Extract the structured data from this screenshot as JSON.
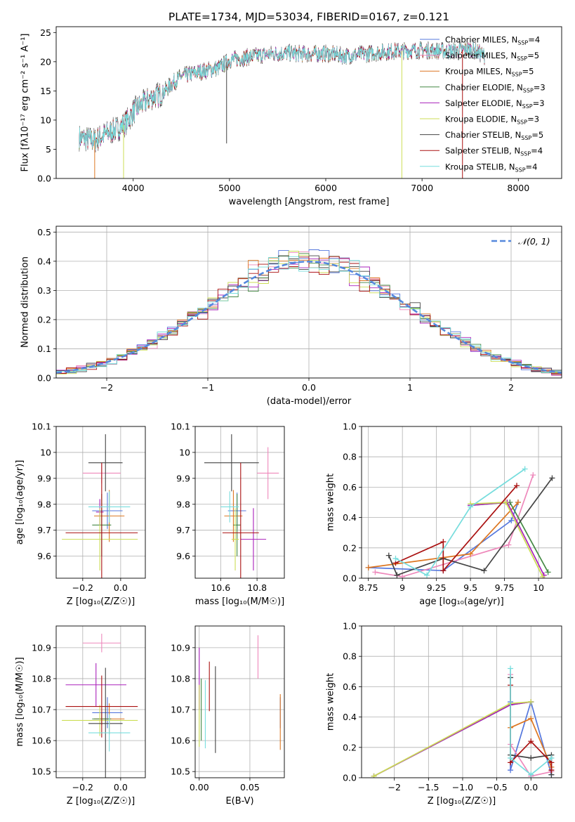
{
  "figure_title": "PLATE=1734, MJD=53034, FIBERID=0167, z=0.121",
  "colors": {
    "chabrier_miles": "#5577dd",
    "salpeter_miles": "#ee88bb",
    "kroupa_miles": "#dd7722",
    "chabrier_elodie": "#448844",
    "salpeter_elodie": "#aa22bb",
    "kroupa_elodie": "#ccdd55",
    "chabrier_stelib": "#444444",
    "salpeter_stelib": "#aa1111",
    "kroupa_stelib": "#77dddd",
    "normal_curve": "#5588dd",
    "grid": "#b0b0b0"
  },
  "legend_models": [
    {
      "name": "Chabrier MILES",
      "nssp": "4"
    },
    {
      "name": "Salpeter MILES",
      "nssp": "5"
    },
    {
      "name": "Kroupa MILES",
      "nssp": "5"
    },
    {
      "name": "Chabrier ELODIE",
      "nssp": "3"
    },
    {
      "name": "Salpeter ELODIE",
      "nssp": "3"
    },
    {
      "name": "Kroupa ELODIE",
      "nssp": "3"
    },
    {
      "name": "Chabrier STELIB",
      "nssp": "5"
    },
    {
      "name": "Salpeter STELIB",
      "nssp": "4"
    },
    {
      "name": "Kroupa STELIB",
      "nssp": "4"
    }
  ],
  "chart_data": [
    {
      "id": "spectrum",
      "type": "line",
      "xlabel": "wavelength [Angstrom, rest frame]",
      "ylabel": "Flux [fλ10⁻¹⁷ erg cm⁻² s⁻¹ A⁻¹]",
      "xlim": [
        3200,
        8450
      ],
      "ylim": [
        0,
        26
      ],
      "xticks": [
        4000,
        5000,
        6000,
        7000,
        8000
      ],
      "yticks": [
        0,
        5,
        10,
        15,
        20,
        25
      ],
      "grid": false,
      "legend": "top-right",
      "x_start": 3440,
      "x_end": 7650,
      "continuum": [
        [
          3440,
          7
        ],
        [
          3600,
          6.5
        ],
        [
          3700,
          7.5
        ],
        [
          3800,
          8.2
        ],
        [
          3900,
          9.2
        ],
        [
          3960,
          10.3
        ],
        [
          4000,
          11.5
        ],
        [
          4100,
          12.8
        ],
        [
          4200,
          14
        ],
        [
          4300,
          14.5
        ],
        [
          4400,
          16.2
        ],
        [
          4500,
          17.5
        ],
        [
          4700,
          18.3
        ],
        [
          4900,
          19
        ],
        [
          5000,
          20.3
        ],
        [
          5200,
          20.8
        ],
        [
          5400,
          21.3
        ],
        [
          5600,
          21.5
        ],
        [
          5800,
          21.3
        ],
        [
          6000,
          21.4
        ],
        [
          6200,
          21
        ],
        [
          6500,
          21.5
        ],
        [
          6700,
          21.8
        ],
        [
          7000,
          22
        ],
        [
          7300,
          21.8
        ],
        [
          7500,
          22.2
        ],
        [
          7650,
          21
        ]
      ]
    },
    {
      "id": "residuals",
      "type": "bar",
      "xlabel": "(data-model)/error",
      "ylabel": "Normed distribution",
      "xlim": [
        -2.5,
        2.5
      ],
      "ylim": [
        0,
        0.52
      ],
      "xticks": [
        -2,
        -1,
        0,
        1,
        2
      ],
      "yticks": [
        0.0,
        0.1,
        0.2,
        0.3,
        0.4,
        0.5
      ],
      "grid": true,
      "legend": "top-right",
      "normal_label": "𝒩(0, 1)",
      "bin_width": 0.1
    },
    {
      "id": "z_age",
      "type": "scatter",
      "xlabel": "Z [log₁₀(Z/Z☉)]",
      "ylabel": "age  [log₁₀(age/yr)]",
      "xlim": [
        -0.34,
        0.13
      ],
      "ylim": [
        9.515,
        10.1
      ],
      "xticks": [
        -0.2,
        0.0
      ],
      "yticks": [
        9.6,
        9.7,
        9.8,
        9.9,
        10.0,
        10.1
      ],
      "grid": true,
      "points": [
        {
          "model": "chabrier_miles",
          "x": -0.07,
          "y": 9.775,
          "xerr": 0.08,
          "yerr": 0.07
        },
        {
          "model": "salpeter_miles",
          "x": -0.1,
          "y": 9.92,
          "xerr": 0.1,
          "yerr": 0.04
        },
        {
          "model": "kroupa_miles",
          "x": -0.06,
          "y": 9.755,
          "xerr": 0.08,
          "yerr": 0.1
        },
        {
          "model": "chabrier_elodie",
          "x": -0.1,
          "y": 9.72,
          "xerr": 0.05,
          "yerr": 0.12
        },
        {
          "model": "salpeter_elodie",
          "x": -0.11,
          "y": 9.77,
          "xerr": 0.02,
          "yerr": 0.05
        },
        {
          "model": "kroupa_elodie",
          "x": -0.11,
          "y": 9.665,
          "xerr": 0.2,
          "yerr": 0.12
        },
        {
          "model": "chabrier_stelib",
          "x": -0.08,
          "y": 9.96,
          "xerr": 0.09,
          "yerr": 0.11
        },
        {
          "model": "salpeter_stelib",
          "x": -0.1,
          "y": 9.69,
          "xerr": 0.19,
          "yerr": 0.27
        },
        {
          "model": "kroupa_stelib",
          "x": -0.06,
          "y": 9.79,
          "xerr": 0.11,
          "yerr": 0.06
        }
      ]
    },
    {
      "id": "mass_age",
      "type": "scatter",
      "xlabel": "mass [log₁₀(M/M☉)]",
      "ylabel": "",
      "xlim": [
        10.46,
        10.95
      ],
      "ylim": [
        9.515,
        10.1
      ],
      "xticks": [
        10.6,
        10.8
      ],
      "yticks": [
        9.6,
        9.7,
        9.8,
        9.9,
        10.0,
        10.1
      ],
      "grid": true,
      "points": [
        {
          "model": "chabrier_miles",
          "x": 10.69,
          "y": 9.775,
          "xerr": 0.05,
          "yerr": 0.07
        },
        {
          "model": "salpeter_miles",
          "x": 10.86,
          "y": 9.92,
          "xerr": 0.06,
          "yerr": 0.1
        },
        {
          "model": "kroupa_miles",
          "x": 10.67,
          "y": 9.755,
          "xerr": 0.05,
          "yerr": 0.1
        },
        {
          "model": "chabrier_elodie",
          "x": 10.69,
          "y": 9.72,
          "xerr": 0.02,
          "yerr": 0.12
        },
        {
          "model": "salpeter_elodie",
          "x": 10.78,
          "y": 9.665,
          "xerr": 0.07,
          "yerr": 0.12
        },
        {
          "model": "kroupa_elodie",
          "x": 10.68,
          "y": 9.665,
          "xerr": 0.02,
          "yerr": 0.12
        },
        {
          "model": "chabrier_stelib",
          "x": 10.66,
          "y": 9.96,
          "xerr": 0.15,
          "yerr": 0.11
        },
        {
          "model": "salpeter_stelib",
          "x": 10.71,
          "y": 9.69,
          "xerr": 0.1,
          "yerr": 0.27
        },
        {
          "model": "kroupa_stelib",
          "x": 10.65,
          "y": 9.79,
          "xerr": 0.05,
          "yerr": 0.06
        }
      ]
    },
    {
      "id": "age_weight",
      "type": "line",
      "xlabel": "age  [log₁₀(age/yr)]",
      "ylabel": "mass weight",
      "xlim": [
        8.7,
        10.17
      ],
      "ylim": [
        0,
        1
      ],
      "xticks": [
        8.75,
        9.0,
        9.25,
        9.5,
        9.75,
        10.0
      ],
      "yticks": [
        0.0,
        0.2,
        0.4,
        0.6,
        0.8,
        1.0
      ],
      "grid": true,
      "series": [
        {
          "model": "chabrier_miles",
          "x": [
            8.75,
            9.3,
            9.8,
            9.85
          ],
          "y": [
            0.07,
            0.05,
            0.38,
            0.5
          ]
        },
        {
          "model": "salpeter_miles",
          "x": [
            8.8,
            9.0,
            9.78,
            9.96
          ],
          "y": [
            0.04,
            0.01,
            0.22,
            0.68
          ]
        },
        {
          "model": "kroupa_miles",
          "x": [
            8.75,
            9.5,
            9.85
          ],
          "y": [
            0.07,
            0.16,
            0.5
          ]
        },
        {
          "model": "chabrier_elodie",
          "x": [
            9.5,
            9.79,
            10.07
          ],
          "y": [
            0.48,
            0.5,
            0.04
          ]
        },
        {
          "model": "salpeter_elodie",
          "x": [
            9.5,
            9.77,
            10.04
          ],
          "y": [
            0.48,
            0.5,
            0.02
          ]
        },
        {
          "model": "kroupa_elodie",
          "x": [
            9.5,
            9.76,
            10.03
          ],
          "y": [
            0.49,
            0.5,
            0.01
          ]
        },
        {
          "model": "chabrier_stelib",
          "x": [
            8.9,
            8.96,
            9.3,
            9.6,
            10.1
          ],
          "y": [
            0.15,
            0.02,
            0.13,
            0.05,
            0.66
          ]
        },
        {
          "model": "salpeter_stelib",
          "x": [
            8.95,
            9.3,
            9.3,
            9.84
          ],
          "y": [
            0.1,
            0.24,
            0.05,
            0.61
          ]
        },
        {
          "model": "kroupa_stelib",
          "x": [
            8.95,
            9.18,
            9.5,
            9.9
          ],
          "y": [
            0.13,
            0.02,
            0.47,
            0.72
          ]
        }
      ]
    },
    {
      "id": "z_mass",
      "type": "scatter",
      "xlabel": "Z [log₁₀(Z/Z☉)]",
      "ylabel": "mass [log₁₀(M/M☉)]",
      "xlim": [
        -0.34,
        0.13
      ],
      "ylim": [
        10.48,
        10.97
      ],
      "xticks": [
        -0.2,
        0.0
      ],
      "yticks": [
        10.5,
        10.6,
        10.7,
        10.8,
        10.9
      ],
      "grid": true,
      "points": [
        {
          "model": "chabrier_miles",
          "x": -0.07,
          "y": 10.69,
          "xerr": 0.08,
          "yerr": 0.05
        },
        {
          "model": "salpeter_miles",
          "x": -0.1,
          "y": 10.915,
          "xerr": 0.1,
          "yerr": 0.03
        },
        {
          "model": "kroupa_miles",
          "x": -0.06,
          "y": 10.67,
          "xerr": 0.08,
          "yerr": 0.05
        },
        {
          "model": "chabrier_elodie",
          "x": -0.1,
          "y": 10.67,
          "xerr": 0.05,
          "yerr": 0.02
        },
        {
          "model": "salpeter_elodie",
          "x": -0.13,
          "y": 10.78,
          "xerr": 0.16,
          "yerr": 0.07
        },
        {
          "model": "kroupa_elodie",
          "x": -0.11,
          "y": 10.665,
          "xerr": 0.2,
          "yerr": 0.05
        },
        {
          "model": "chabrier_stelib",
          "x": -0.08,
          "y": 10.655,
          "xerr": 0.09,
          "yerr": 0.18
        },
        {
          "model": "salpeter_stelib",
          "x": -0.1,
          "y": 10.71,
          "xerr": 0.19,
          "yerr": 0.1
        },
        {
          "model": "kroupa_stelib",
          "x": -0.06,
          "y": 10.625,
          "xerr": 0.11,
          "yerr": 0.06
        }
      ]
    },
    {
      "id": "ebv_mass",
      "type": "scatter",
      "xlabel": "E(B-V)",
      "ylabel": "",
      "xlim": [
        -0.004,
        0.084
      ],
      "ylim": [
        10.48,
        10.97
      ],
      "xticks": [
        0.0,
        0.05
      ],
      "yticks": [
        10.5,
        10.6,
        10.7,
        10.8,
        10.9
      ],
      "grid": true,
      "points": [
        {
          "model": "chabrier_miles",
          "x": 0.08,
          "y": 10.69,
          "xerr": 0,
          "yerr": 0.05
        },
        {
          "model": "salpeter_miles",
          "x": 0.058,
          "y": 10.87,
          "xerr": 0,
          "yerr": 0.07
        },
        {
          "model": "kroupa_miles",
          "x": 0.08,
          "y": 10.66,
          "xerr": 0,
          "yerr": 0.09
        },
        {
          "model": "chabrier_elodie",
          "x": 0.002,
          "y": 10.7,
          "xerr": 0,
          "yerr": 0.1
        },
        {
          "model": "salpeter_elodie",
          "x": 0.0,
          "y": 10.8,
          "xerr": 0,
          "yerr": 0.1
        },
        {
          "model": "kroupa_elodie",
          "x": 0.0,
          "y": 10.68,
          "xerr": 0,
          "yerr": 0.1
        },
        {
          "model": "chabrier_stelib",
          "x": 0.016,
          "y": 10.7,
          "xerr": 0,
          "yerr": 0.14
        },
        {
          "model": "salpeter_stelib",
          "x": 0.01,
          "y": 10.775,
          "xerr": 0,
          "yerr": 0.08
        },
        {
          "model": "kroupa_stelib",
          "x": 0.006,
          "y": 10.685,
          "xerr": 0,
          "yerr": 0.11
        }
      ]
    },
    {
      "id": "z_weight",
      "type": "line",
      "xlabel": "Z [log₁₀(Z/Z☉)]",
      "ylabel": "mass weight",
      "xlim": [
        -2.48,
        0.45
      ],
      "ylim": [
        0,
        1
      ],
      "xticks": [
        -2.0,
        -1.5,
        -1.0,
        -0.5,
        0.0
      ],
      "yticks": [
        0.0,
        0.2,
        0.4,
        0.6,
        0.8,
        1.0
      ],
      "grid": true,
      "series": [
        {
          "model": "chabrier_miles",
          "x": [
            -0.3,
            -0.3,
            0.0,
            0.3
          ],
          "y": [
            0.5,
            0.05,
            0.5,
            0.02
          ]
        },
        {
          "model": "salpeter_miles",
          "x": [
            -0.3,
            -0.3,
            0.0,
            0.3
          ],
          "y": [
            0.68,
            0.22,
            0.01,
            0.04
          ]
        },
        {
          "model": "kroupa_miles",
          "x": [
            -0.3,
            0.0,
            0.3
          ],
          "y": [
            0.33,
            0.39,
            0.07
          ]
        },
        {
          "model": "chabrier_elodie",
          "x": [
            -2.3,
            -0.3,
            0.0
          ],
          "y": [
            0.01,
            0.48,
            0.5
          ]
        },
        {
          "model": "salpeter_elodie",
          "x": [
            -2.3,
            -0.3,
            0.0
          ],
          "y": [
            0.01,
            0.48,
            0.5
          ]
        },
        {
          "model": "kroupa_elodie",
          "x": [
            -2.3,
            -0.3,
            0.0
          ],
          "y": [
            0.01,
            0.49,
            0.5
          ]
        },
        {
          "model": "chabrier_stelib",
          "x": [
            -0.3,
            -0.3,
            0.0,
            0.3,
            0.3
          ],
          "y": [
            0.66,
            0.15,
            0.13,
            0.15,
            0.02
          ]
        },
        {
          "model": "salpeter_stelib",
          "x": [
            -0.3,
            -0.3,
            0.0,
            0.3,
            0.3
          ],
          "y": [
            0.61,
            0.1,
            0.24,
            0.1,
            0.05
          ]
        },
        {
          "model": "kroupa_stelib",
          "x": [
            -0.3,
            -0.3,
            0.0,
            0.3
          ],
          "y": [
            0.72,
            0.13,
            0.02,
            0.13
          ]
        }
      ]
    }
  ]
}
